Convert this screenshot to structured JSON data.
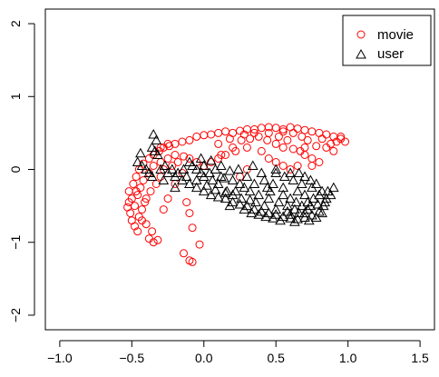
{
  "chart_data": {
    "type": "scatter",
    "title": "",
    "xlabel": "",
    "ylabel": "",
    "xlim": [
      -1.1,
      1.6
    ],
    "ylim": [
      -2.2,
      2.2
    ],
    "x_ticks": [
      -1.0,
      -0.5,
      0.0,
      0.5,
      1.0,
      1.5
    ],
    "x_tick_labels": [
      "−1.0",
      "−0.5",
      "0.0",
      "0.5",
      "1.0",
      "1.5"
    ],
    "y_ticks": [
      -2,
      -1,
      0,
      1,
      2
    ],
    "y_tick_labels": [
      "−2",
      "−1",
      "0",
      "1",
      "2"
    ],
    "legend_position": "top-right",
    "series": [
      {
        "name": "movie",
        "marker": "open-circle",
        "color": "#ff0000",
        "points": [
          [
            -0.52,
            -0.45
          ],
          [
            -0.51,
            -0.6
          ],
          [
            -0.53,
            -0.52
          ],
          [
            -0.5,
            -0.7
          ],
          [
            -0.48,
            -0.78
          ],
          [
            -0.46,
            -0.85
          ],
          [
            -0.5,
            -0.4
          ],
          [
            -0.52,
            -0.3
          ],
          [
            -0.49,
            -0.2
          ],
          [
            -0.47,
            -0.1
          ],
          [
            -0.45,
            0.0
          ],
          [
            -0.42,
            0.08
          ],
          [
            -0.38,
            0.15
          ],
          [
            -0.35,
            0.2
          ],
          [
            -0.31,
            0.25
          ],
          [
            -0.28,
            0.3
          ],
          [
            -0.24,
            0.32
          ],
          [
            -0.2,
            0.35
          ],
          [
            -0.15,
            0.38
          ],
          [
            -0.1,
            0.4
          ],
          [
            -0.05,
            0.45
          ],
          [
            0.0,
            0.47
          ],
          [
            0.05,
            0.48
          ],
          [
            0.1,
            0.5
          ],
          [
            0.15,
            0.52
          ],
          [
            0.2,
            0.5
          ],
          [
            0.25,
            0.53
          ],
          [
            0.3,
            0.55
          ],
          [
            0.35,
            0.55
          ],
          [
            0.4,
            0.57
          ],
          [
            0.45,
            0.58
          ],
          [
            0.5,
            0.57
          ],
          [
            0.55,
            0.55
          ],
          [
            0.6,
            0.58
          ],
          [
            0.65,
            0.56
          ],
          [
            0.7,
            0.54
          ],
          [
            0.75,
            0.52
          ],
          [
            0.8,
            0.5
          ],
          [
            0.85,
            0.48
          ],
          [
            0.9,
            0.45
          ],
          [
            0.95,
            0.42
          ],
          [
            0.98,
            0.38
          ],
          [
            0.88,
            0.35
          ],
          [
            0.78,
            0.32
          ],
          [
            0.7,
            0.3
          ],
          [
            0.62,
            0.28
          ],
          [
            0.55,
            0.3
          ],
          [
            0.5,
            0.35
          ],
          [
            0.44,
            0.4
          ],
          [
            0.38,
            0.45
          ],
          [
            0.32,
            0.42
          ],
          [
            0.26,
            0.4
          ],
          [
            0.2,
            0.3
          ],
          [
            0.15,
            0.2
          ],
          [
            0.1,
            0.15
          ],
          [
            0.05,
            0.1
          ],
          [
            0.0,
            0.05
          ],
          [
            -0.05,
            0.1
          ],
          [
            -0.1,
            0.15
          ],
          [
            -0.14,
            0.18
          ],
          [
            -0.2,
            0.2
          ],
          [
            -0.25,
            0.15
          ],
          [
            -0.3,
            0.1
          ],
          [
            -0.35,
            0.05
          ],
          [
            -0.38,
            -0.05
          ],
          [
            -0.42,
            -0.15
          ],
          [
            -0.44,
            -0.25
          ],
          [
            -0.46,
            -0.35
          ],
          [
            -0.48,
            -0.5
          ],
          [
            -0.45,
            -0.65
          ],
          [
            -0.4,
            -0.75
          ],
          [
            -0.36,
            -0.85
          ],
          [
            -0.38,
            -0.95
          ],
          [
            -0.35,
            -1.0
          ],
          [
            -0.32,
            -0.97
          ],
          [
            -0.28,
            -0.55
          ],
          [
            -0.25,
            -0.4
          ],
          [
            -0.2,
            -0.2
          ],
          [
            -0.15,
            -0.05
          ],
          [
            -0.12,
            -0.45
          ],
          [
            -0.1,
            -0.6
          ],
          [
            -0.08,
            -0.8
          ],
          [
            -0.03,
            -1.03
          ],
          [
            -0.14,
            -1.15
          ],
          [
            -0.1,
            -1.25
          ],
          [
            -0.08,
            -1.27
          ],
          [
            -0.4,
            -0.4
          ],
          [
            -0.37,
            -0.3
          ],
          [
            -0.33,
            -0.2
          ],
          [
            -0.3,
            -0.1
          ],
          [
            -0.28,
            0.0
          ],
          [
            -0.22,
            0.05
          ],
          [
            -0.18,
            0.1
          ],
          [
            0.1,
            0.35
          ],
          [
            0.18,
            0.42
          ],
          [
            0.28,
            0.48
          ],
          [
            0.35,
            0.5
          ],
          [
            0.45,
            0.5
          ],
          [
            0.55,
            0.52
          ],
          [
            0.62,
            0.5
          ],
          [
            0.68,
            0.45
          ],
          [
            0.72,
            0.4
          ],
          [
            0.82,
            0.42
          ],
          [
            0.92,
            0.38
          ],
          [
            0.95,
            0.45
          ],
          [
            0.6,
            0.0
          ],
          [
            0.65,
            0.05
          ],
          [
            0.75,
            0.05
          ],
          [
            0.8,
            0.1
          ],
          [
            0.55,
            0.05
          ],
          [
            0.5,
            0.1
          ],
          [
            0.45,
            0.15
          ],
          [
            0.4,
            0.25
          ],
          [
            0.3,
            0.3
          ],
          [
            0.22,
            0.25
          ],
          [
            0.12,
            0.2
          ],
          [
            -0.43,
            -0.55
          ],
          [
            -0.41,
            -0.45
          ],
          [
            -0.47,
            -0.3
          ],
          [
            -0.43,
            -0.7
          ],
          [
            -0.3,
            0.3
          ],
          [
            -0.25,
            0.35
          ],
          [
            0.7,
            0.2
          ],
          [
            0.75,
            0.15
          ],
          [
            0.67,
            0.25
          ],
          [
            0.58,
            0.4
          ],
          [
            0.52,
            0.45
          ],
          [
            0.85,
            0.3
          ],
          [
            0.9,
            0.25
          ],
          [
            0.3,
            0.0
          ],
          [
            0.25,
            -0.1
          ]
        ]
      },
      {
        "name": "user",
        "marker": "open-triangle",
        "color": "#000000",
        "points": [
          [
            -0.35,
            0.48
          ],
          [
            -0.33,
            0.4
          ],
          [
            -0.36,
            0.3
          ],
          [
            -0.34,
            0.25
          ],
          [
            -0.32,
            0.2
          ],
          [
            -0.44,
            0.22
          ],
          [
            -0.46,
            0.1
          ],
          [
            -0.43,
            0.05
          ],
          [
            -0.4,
            0.0
          ],
          [
            -0.38,
            -0.05
          ],
          [
            -0.3,
            0.0
          ],
          [
            -0.25,
            -0.05
          ],
          [
            -0.2,
            -0.1
          ],
          [
            -0.15,
            -0.15
          ],
          [
            -0.1,
            -0.2
          ],
          [
            -0.05,
            -0.25
          ],
          [
            0.0,
            -0.3
          ],
          [
            0.05,
            -0.35
          ],
          [
            0.1,
            -0.38
          ],
          [
            0.15,
            -0.4
          ],
          [
            0.2,
            -0.45
          ],
          [
            0.25,
            -0.48
          ],
          [
            0.3,
            -0.5
          ],
          [
            0.35,
            -0.55
          ],
          [
            0.4,
            -0.58
          ],
          [
            0.45,
            -0.6
          ],
          [
            0.5,
            -0.62
          ],
          [
            0.55,
            -0.65
          ],
          [
            0.6,
            -0.67
          ],
          [
            0.65,
            -0.68
          ],
          [
            0.7,
            -0.66
          ],
          [
            0.75,
            -0.63
          ],
          [
            0.8,
            -0.58
          ],
          [
            0.83,
            -0.5
          ],
          [
            0.85,
            -0.4
          ],
          [
            0.82,
            -0.3
          ],
          [
            0.78,
            -0.2
          ],
          [
            0.7,
            -0.1
          ],
          [
            0.6,
            -0.05
          ],
          [
            0.5,
            0.0
          ],
          [
            0.4,
            -0.05
          ],
          [
            0.3,
            -0.1
          ],
          [
            0.2,
            -0.15
          ],
          [
            0.1,
            -0.2
          ],
          [
            0.0,
            -0.1
          ],
          [
            -0.05,
            0.0
          ],
          [
            -0.1,
            0.1
          ],
          [
            -0.02,
            0.15
          ],
          [
            0.05,
            0.12
          ],
          [
            0.12,
            0.05
          ],
          [
            0.18,
            -0.02
          ],
          [
            0.25,
            -0.2
          ],
          [
            0.32,
            -0.3
          ],
          [
            0.38,
            -0.35
          ],
          [
            0.45,
            -0.4
          ],
          [
            0.52,
            -0.45
          ],
          [
            0.58,
            -0.5
          ],
          [
            0.63,
            -0.55
          ],
          [
            0.68,
            -0.5
          ],
          [
            0.72,
            -0.45
          ],
          [
            0.76,
            -0.4
          ],
          [
            0.8,
            -0.35
          ],
          [
            0.86,
            -0.3
          ],
          [
            0.9,
            -0.25
          ],
          [
            0.65,
            -0.3
          ],
          [
            0.55,
            -0.25
          ],
          [
            0.48,
            -0.2
          ],
          [
            0.42,
            -0.15
          ],
          [
            0.35,
            -0.2
          ],
          [
            0.28,
            -0.25
          ],
          [
            0.22,
            -0.3
          ],
          [
            0.15,
            -0.32
          ],
          [
            0.08,
            -0.28
          ],
          [
            0.02,
            -0.22
          ],
          [
            -0.05,
            -0.15
          ],
          [
            -0.12,
            -0.1
          ],
          [
            -0.18,
            -0.05
          ],
          [
            -0.22,
            0.0
          ],
          [
            -0.27,
            0.05
          ],
          [
            0.6,
            -0.4
          ],
          [
            0.7,
            -0.35
          ],
          [
            0.75,
            -0.25
          ],
          [
            0.68,
            -0.2
          ],
          [
            0.62,
            -0.15
          ],
          [
            0.56,
            -0.1
          ],
          [
            0.46,
            -0.3
          ],
          [
            0.36,
            -0.45
          ],
          [
            0.26,
            -0.4
          ],
          [
            0.16,
            -0.3
          ],
          [
            0.06,
            -0.15
          ],
          [
            -0.02,
            -0.05
          ],
          [
            0.33,
            -0.6
          ],
          [
            0.43,
            -0.65
          ],
          [
            0.53,
            -0.7
          ],
          [
            0.63,
            -0.72
          ],
          [
            0.73,
            -0.7
          ],
          [
            0.78,
            -0.66
          ],
          [
            0.82,
            -0.6
          ],
          [
            0.72,
            -0.55
          ],
          [
            0.66,
            -0.6
          ],
          [
            0.58,
            -0.58
          ],
          [
            0.5,
            -0.55
          ],
          [
            0.42,
            -0.5
          ],
          [
            0.32,
            -0.42
          ],
          [
            0.2,
            -0.35
          ],
          [
            0.12,
            -0.1
          ],
          [
            0.08,
            0.0
          ],
          [
            0.0,
            0.05
          ],
          [
            -0.08,
            0.05
          ],
          [
            -0.14,
            0.0
          ],
          [
            0.34,
            0.05
          ],
          [
            0.5,
            -0.05
          ],
          [
            0.66,
            -0.05
          ],
          [
            0.74,
            -0.15
          ],
          [
            0.84,
            -0.45
          ],
          [
            0.88,
            -0.35
          ],
          [
            0.79,
            -0.48
          ],
          [
            0.7,
            -0.6
          ],
          [
            0.6,
            -0.62
          ],
          [
            0.48,
            -0.67
          ],
          [
            0.38,
            -0.62
          ],
          [
            0.28,
            -0.55
          ],
          [
            0.18,
            -0.5
          ],
          [
            -0.36,
            -0.1
          ],
          [
            -0.28,
            -0.15
          ],
          [
            -0.2,
            -0.25
          ],
          [
            0.55,
            -0.35
          ],
          [
            0.64,
            -0.45
          ],
          [
            0.74,
            -0.5
          ],
          [
            0.44,
            -0.25
          ],
          [
            0.24,
            0.0
          ],
          [
            0.14,
            -0.12
          ],
          [
            0.04,
            -0.05
          ]
        ]
      }
    ]
  }
}
